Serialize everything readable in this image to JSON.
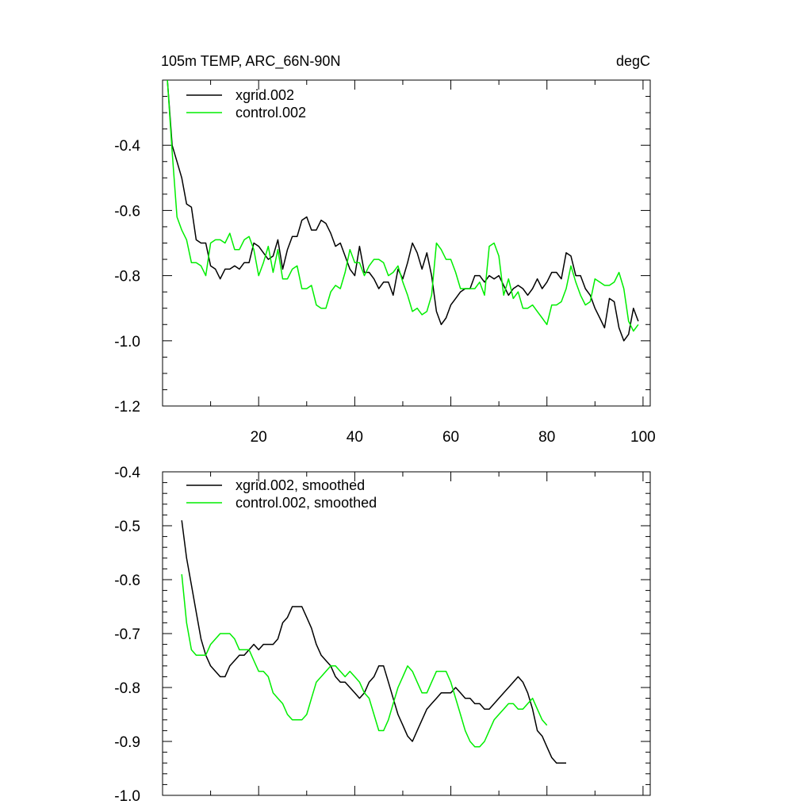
{
  "figure": {
    "title_left": "105m TEMP, ARC_66N-90N",
    "title_right": "degC"
  },
  "chart_data": [
    {
      "type": "line",
      "title": "",
      "xlabel": "",
      "ylabel": "",
      "xlim": [
        0,
        101.5
      ],
      "ylim": [
        -1.2,
        -0.2
      ],
      "x_ticks": [
        20,
        40,
        60,
        80,
        100
      ],
      "x_minor_ticks": [
        10,
        30,
        50,
        70,
        90
      ],
      "y_ticks": [
        -1.2,
        -1.0,
        -0.8,
        -0.6,
        -0.4
      ],
      "y_minor_ticks": [
        -1.15,
        -1.1,
        -1.05,
        -0.95,
        -0.9,
        -0.85,
        -0.75,
        -0.7,
        -0.65,
        -0.55,
        -0.5,
        -0.45,
        -0.35,
        -0.3,
        -0.25
      ],
      "x_tick_labels_shown": true,
      "grid": false,
      "legend_position": "top-left",
      "colors": [
        "#000000",
        "#00ee00"
      ],
      "x_start": 1,
      "series": [
        {
          "name": "xgrid.002",
          "color": "#000000",
          "values": [
            -0.2,
            -0.4,
            -0.45,
            -0.5,
            -0.58,
            -0.59,
            -0.69,
            -0.7,
            -0.7,
            -0.77,
            -0.78,
            -0.81,
            -0.78,
            -0.78,
            -0.77,
            -0.78,
            -0.76,
            -0.76,
            -0.7,
            -0.71,
            -0.73,
            -0.75,
            -0.74,
            -0.69,
            -0.78,
            -0.72,
            -0.68,
            -0.68,
            -0.63,
            -0.62,
            -0.66,
            -0.66,
            -0.63,
            -0.64,
            -0.67,
            -0.71,
            -0.7,
            -0.74,
            -0.78,
            -0.8,
            -0.71,
            -0.79,
            -0.79,
            -0.81,
            -0.84,
            -0.82,
            -0.82,
            -0.86,
            -0.78,
            -0.81,
            -0.76,
            -0.7,
            -0.73,
            -0.78,
            -0.73,
            -0.8,
            -0.91,
            -0.95,
            -0.93,
            -0.89,
            -0.87,
            -0.85,
            -0.84,
            -0.84,
            -0.8,
            -0.8,
            -0.82,
            -0.8,
            -0.81,
            -0.8,
            -0.83,
            -0.86,
            -0.84,
            -0.83,
            -0.84,
            -0.86,
            -0.84,
            -0.81,
            -0.84,
            -0.82,
            -0.79,
            -0.79,
            -0.81,
            -0.73,
            -0.74,
            -0.8,
            -0.8,
            -0.84,
            -0.86,
            -0.9,
            -0.93,
            -0.96,
            -0.87,
            -0.88,
            -0.96,
            -1.0,
            -0.98,
            -0.9,
            -0.94
          ]
        },
        {
          "name": "control.002",
          "color": "#00ee00",
          "values": [
            -0.2,
            -0.42,
            -0.62,
            -0.66,
            -0.69,
            -0.76,
            -0.76,
            -0.77,
            -0.8,
            -0.7,
            -0.69,
            -0.69,
            -0.7,
            -0.67,
            -0.72,
            -0.72,
            -0.69,
            -0.68,
            -0.72,
            -0.8,
            -0.76,
            -0.71,
            -0.79,
            -0.72,
            -0.81,
            -0.81,
            -0.78,
            -0.77,
            -0.84,
            -0.84,
            -0.83,
            -0.89,
            -0.9,
            -0.9,
            -0.85,
            -0.83,
            -0.84,
            -0.79,
            -0.72,
            -0.76,
            -0.76,
            -0.8,
            -0.77,
            -0.75,
            -0.75,
            -0.76,
            -0.8,
            -0.79,
            -0.77,
            -0.82,
            -0.86,
            -0.91,
            -0.9,
            -0.92,
            -0.91,
            -0.86,
            -0.7,
            -0.72,
            -0.75,
            -0.75,
            -0.79,
            -0.84,
            -0.84,
            -0.84,
            -0.84,
            -0.82,
            -0.86,
            -0.71,
            -0.7,
            -0.74,
            -0.86,
            -0.81,
            -0.87,
            -0.85,
            -0.9,
            -0.9,
            -0.89,
            -0.91,
            -0.93,
            -0.95,
            -0.89,
            -0.89,
            -0.88,
            -0.84,
            -0.77,
            -0.82,
            -0.86,
            -0.89,
            -0.88,
            -0.81,
            -0.82,
            -0.83,
            -0.83,
            -0.82,
            -0.79,
            -0.84,
            -0.94,
            -0.97,
            -0.95
          ]
        }
      ]
    },
    {
      "type": "line",
      "title": "",
      "xlabel": "",
      "ylabel": "",
      "xlim": [
        0,
        101.5
      ],
      "ylim": [
        -1.0,
        -0.4
      ],
      "x_ticks": [
        20,
        40,
        60,
        80,
        100
      ],
      "x_minor_ticks": [
        10,
        30,
        50,
        70,
        90
      ],
      "y_ticks": [
        -1.0,
        -0.9,
        -0.8,
        -0.7,
        -0.6,
        -0.5,
        -0.4
      ],
      "y_minor_ticks": [
        -0.98,
        -0.96,
        -0.94,
        -0.92,
        -0.88,
        -0.86,
        -0.84,
        -0.82,
        -0.78,
        -0.76,
        -0.74,
        -0.72,
        -0.68,
        -0.66,
        -0.64,
        -0.62,
        -0.58,
        -0.56,
        -0.54,
        -0.52,
        -0.48,
        -0.46,
        -0.44,
        -0.42
      ],
      "x_tick_labels_shown": false,
      "grid": false,
      "legend_position": "top-left",
      "colors": [
        "#000000",
        "#00ee00"
      ],
      "x_start": 4,
      "series": [
        {
          "name": "xgrid.002, smoothed",
          "color": "#000000",
          "values": [
            -0.49,
            -0.56,
            -0.61,
            -0.66,
            -0.71,
            -0.74,
            -0.76,
            -0.77,
            -0.78,
            -0.78,
            -0.76,
            -0.75,
            -0.74,
            -0.74,
            -0.73,
            -0.72,
            -0.73,
            -0.72,
            -0.72,
            -0.72,
            -0.71,
            -0.68,
            -0.67,
            -0.65,
            -0.65,
            -0.65,
            -0.67,
            -0.69,
            -0.72,
            -0.74,
            -0.75,
            -0.76,
            -0.78,
            -0.79,
            -0.79,
            -0.8,
            -0.81,
            -0.82,
            -0.81,
            -0.79,
            -0.78,
            -0.76,
            -0.76,
            -0.79,
            -0.82,
            -0.85,
            -0.87,
            -0.89,
            -0.9,
            -0.88,
            -0.86,
            -0.84,
            -0.83,
            -0.82,
            -0.81,
            -0.81,
            -0.81,
            -0.8,
            -0.81,
            -0.82,
            -0.82,
            -0.83,
            -0.83,
            -0.84,
            -0.84,
            -0.83,
            -0.82,
            -0.81,
            -0.8,
            -0.79,
            -0.78,
            -0.79,
            -0.81,
            -0.84,
            -0.88,
            -0.89,
            -0.91,
            -0.93,
            -0.94,
            -0.94,
            -0.94
          ]
        },
        {
          "name": "control.002, smoothed",
          "color": "#00ee00",
          "values": [
            -0.59,
            -0.68,
            -0.73,
            -0.74,
            -0.74,
            -0.74,
            -0.72,
            -0.71,
            -0.7,
            -0.7,
            -0.7,
            -0.71,
            -0.73,
            -0.73,
            -0.73,
            -0.75,
            -0.77,
            -0.77,
            -0.78,
            -0.81,
            -0.82,
            -0.83,
            -0.85,
            -0.86,
            -0.86,
            -0.86,
            -0.85,
            -0.82,
            -0.79,
            -0.78,
            -0.77,
            -0.76,
            -0.76,
            -0.77,
            -0.78,
            -0.77,
            -0.78,
            -0.79,
            -0.81,
            -0.82,
            -0.85,
            -0.88,
            -0.88,
            -0.86,
            -0.83,
            -0.8,
            -0.78,
            -0.76,
            -0.77,
            -0.79,
            -0.81,
            -0.81,
            -0.79,
            -0.77,
            -0.77,
            -0.77,
            -0.79,
            -0.82,
            -0.85,
            -0.88,
            -0.9,
            -0.91,
            -0.91,
            -0.9,
            -0.88,
            -0.86,
            -0.85,
            -0.84,
            -0.83,
            -0.83,
            -0.84,
            -0.84,
            -0.83,
            -0.82,
            -0.84,
            -0.86,
            -0.87
          ]
        }
      ]
    }
  ]
}
